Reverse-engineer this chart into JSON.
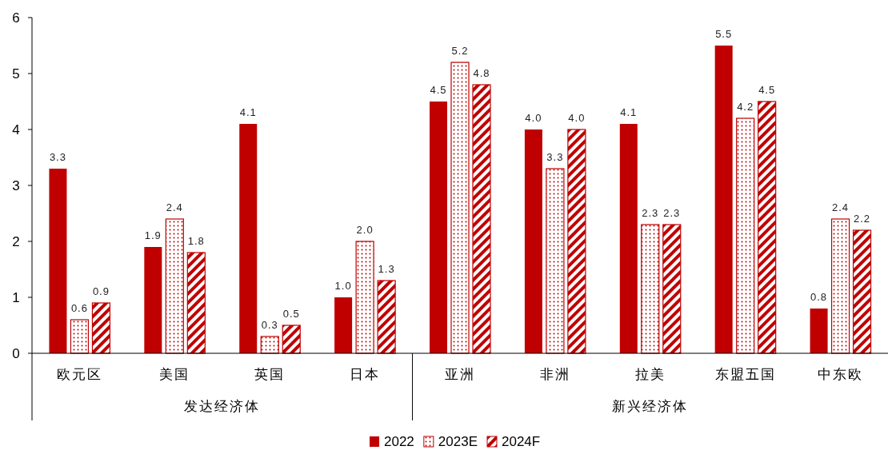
{
  "chart_data": {
    "type": "bar",
    "categories": [
      "欧元区",
      "美国",
      "英国",
      "日本",
      "亚洲",
      "非洲",
      "拉美",
      "东盟五国",
      "中东欧"
    ],
    "series": [
      {
        "name": "2022",
        "color": "#c00000",
        "values": [
          3.3,
          1.9,
          4.1,
          1.0,
          4.5,
          4.0,
          4.1,
          5.5,
          0.8
        ],
        "value_labels": [
          "3.3",
          "1.9",
          "4.1",
          "1.0",
          "4.5",
          "4.0",
          "4.1",
          "5.5",
          "0.8"
        ]
      },
      {
        "name": "2023E",
        "color": "#c00000",
        "values": [
          0.6,
          2.4,
          0.3,
          2.0,
          5.2,
          3.3,
          2.3,
          4.2,
          2.4
        ],
        "value_labels": [
          "0.6",
          "2.4",
          "0.3",
          "2.0",
          "5.2",
          "3.3",
          "2.3",
          "4.2",
          "2.4"
        ]
      },
      {
        "name": "2024F",
        "color": "#c00000",
        "values": [
          0.9,
          1.8,
          0.5,
          1.3,
          4.8,
          4.0,
          2.3,
          4.5,
          2.2
        ],
        "value_labels": [
          "0.9",
          "1.8",
          "0.5",
          "1.3",
          "4.8",
          "4.0",
          "2.3",
          "4.5",
          "2.2"
        ]
      }
    ],
    "ylim": [
      0,
      6
    ],
    "yticks": [
      0,
      1,
      2,
      3,
      4,
      5,
      6
    ],
    "legend": "bottom",
    "annotations": [
      "发达经济体",
      "新兴经济体"
    ]
  }
}
